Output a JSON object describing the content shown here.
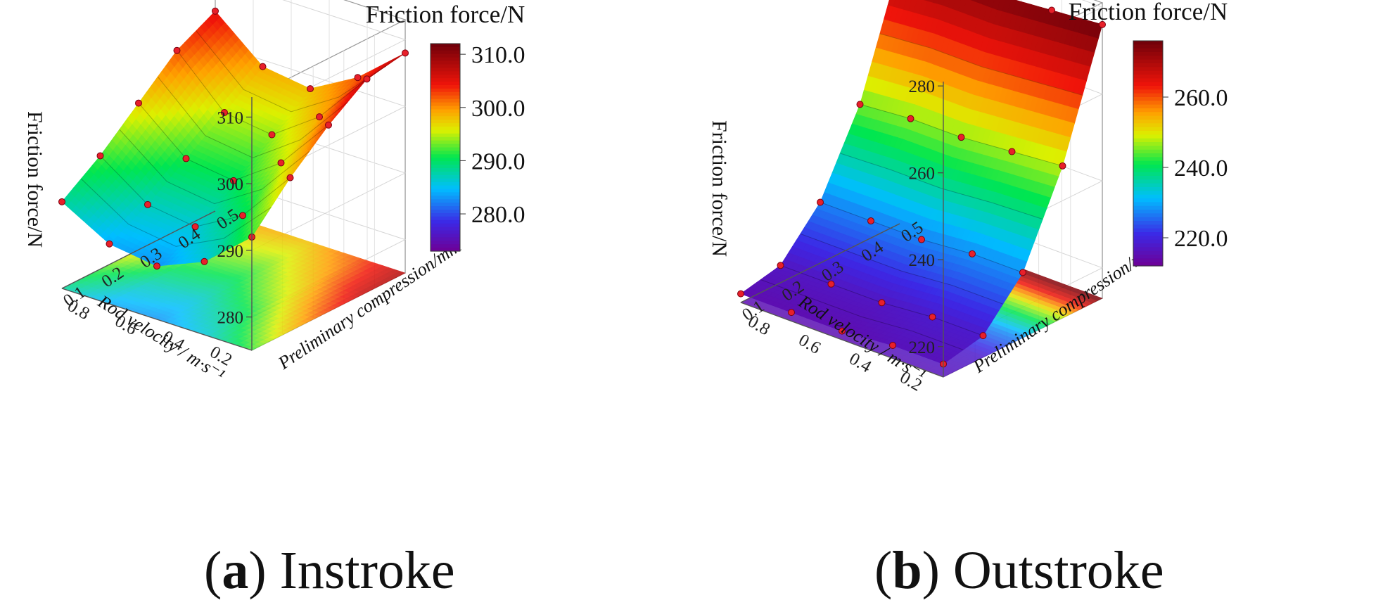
{
  "chart_data": [
    {
      "type": "surface3d",
      "panel_label": "a",
      "panel_title": "Instroke",
      "zlabel": "Friction force/N",
      "colorbar_title": "Friction force/N",
      "xlabel": "Rod velocity / m·s⁻¹",
      "ylabel": "Preliminary compression/mm",
      "x_ticks": [
        "0.2",
        "0.4",
        "0.6",
        "0.8"
      ],
      "y_ticks": [
        "0.1",
        "0.2",
        "0.3",
        "0.4",
        "0.5"
      ],
      "z_ticks": [
        "280",
        "290",
        "300",
        "310"
      ],
      "colorbar_ticks": [
        "310.0",
        "300.0",
        "290.0",
        "280.0"
      ],
      "colorbar_range": [
        273,
        312
      ],
      "zlim": [
        275,
        313
      ],
      "x": [
        0.1,
        0.3,
        0.5,
        0.7,
        0.9
      ],
      "y": [
        0.1,
        0.2,
        0.3,
        0.4,
        0.5
      ],
      "z": [
        [
          292,
          286,
          283,
          284,
          288
        ],
        [
          298,
          290,
          286,
          287,
          292
        ],
        [
          303,
          295,
          290,
          291,
          297
        ],
        [
          307,
          299,
          294,
          295,
          302
        ],
        [
          308,
          302,
          298,
          299,
          305
        ]
      ]
    },
    {
      "type": "surface3d",
      "panel_label": "b",
      "panel_title": "Outstroke",
      "zlabel": "Friction force/N",
      "colorbar_title": "Friction force/N",
      "xlabel": "Rod velocity / m·s⁻¹",
      "ylabel": "Preliminary compression/mm",
      "x_ticks": [
        "0.2",
        "0.4",
        "0.6",
        "0.8"
      ],
      "y_ticks": [
        "0.1",
        "0.2",
        "0.3",
        "0.4",
        "0.5"
      ],
      "z_ticks": [
        "220",
        "240",
        "260",
        "280"
      ],
      "colorbar_ticks": [
        "260.0",
        "240.0",
        "220.0"
      ],
      "colorbar_range": [
        212,
        276
      ],
      "zlim": [
        213,
        281
      ],
      "x": [
        0.1,
        0.3,
        0.5,
        0.7,
        0.9
      ],
      "y": [
        0.1,
        0.2,
        0.3,
        0.4,
        0.5
      ],
      "z": [
        [
          216,
          216,
          215,
          215,
          215
        ],
        [
          218,
          218,
          217,
          217,
          217
        ],
        [
          228,
          228,
          227,
          227,
          227
        ],
        [
          248,
          247,
          246,
          246,
          245
        ],
        [
          276,
          275,
          274,
          274,
          273
        ]
      ]
    }
  ]
}
